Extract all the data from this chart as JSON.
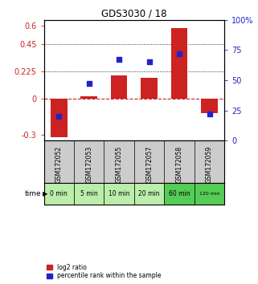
{
  "title": "GDS3030 / 18",
  "samples": [
    "GSM172052",
    "GSM172053",
    "GSM172055",
    "GSM172057",
    "GSM172058",
    "GSM172059"
  ],
  "time_labels": [
    "0 min",
    "5 min",
    "10 min",
    "20 min",
    "60 min",
    "120 min"
  ],
  "log2_ratio": [
    -0.32,
    0.02,
    0.19,
    0.17,
    0.58,
    -0.12
  ],
  "percentile_rank": [
    20,
    47,
    67,
    65,
    72,
    22
  ],
  "bar_color": "#cc2222",
  "dot_color": "#2222cc",
  "ylim_left": [
    -0.35,
    0.65
  ],
  "ylim_right": [
    0,
    100
  ],
  "yticks_left": [
    -0.3,
    0,
    0.225,
    0.45,
    0.6
  ],
  "ytick_labels_left": [
    "-0.3",
    "0",
    "0.225",
    "0.45",
    "0.6"
  ],
  "yticks_right": [
    0,
    25,
    50,
    75,
    100
  ],
  "ytick_labels_right": [
    "0",
    "25",
    "50",
    "75",
    "100%"
  ],
  "dotted_lines": [
    0.225,
    0.45
  ],
  "background_color": "#ffffff",
  "gray_sample": "#cccccc",
  "time_row_colors": [
    "#bbeeaa",
    "#bbeeaa",
    "#bbeeaa",
    "#bbeeaa",
    "#55cc55",
    "#55cc55"
  ],
  "bar_width": 0.55
}
